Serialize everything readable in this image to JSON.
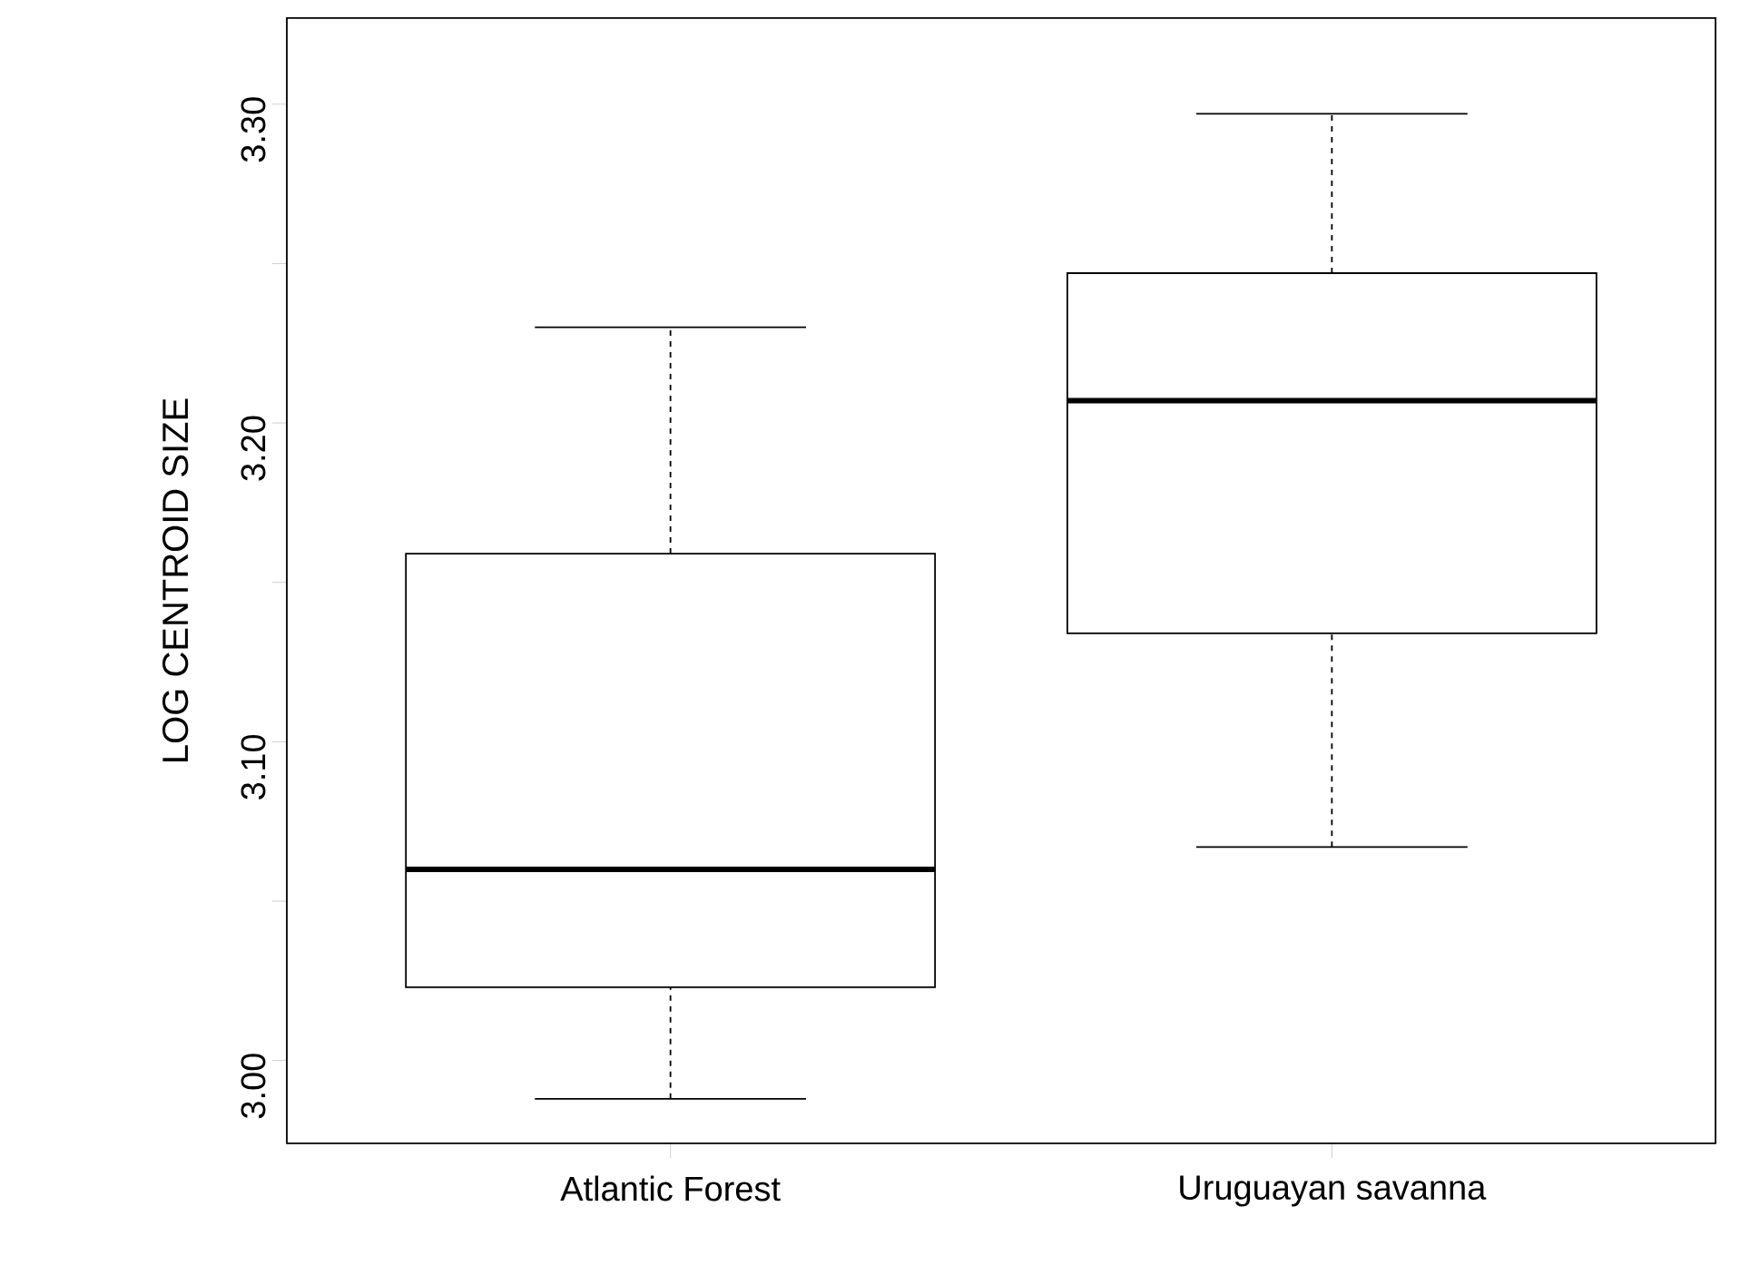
{
  "chart_data": {
    "type": "box",
    "ylabel": "LOG CENTROID SIZE",
    "categories": [
      "Atlantic Forest",
      "Uruguayan savanna"
    ],
    "boxes": [
      {
        "low": 2.988,
        "q1": 3.023,
        "median": 3.06,
        "q3": 3.159,
        "high": 3.23
      },
      {
        "low": 3.067,
        "q1": 3.134,
        "median": 3.207,
        "q3": 3.247,
        "high": 3.297
      }
    ],
    "ylim": [
      2.974,
      3.327
    ],
    "yticks": [
      {
        "value": 3.0,
        "label": "3.00"
      },
      {
        "value": 3.05,
        "label": null
      },
      {
        "value": 3.1,
        "label": "3.10"
      },
      {
        "value": 3.15,
        "label": null
      },
      {
        "value": 3.2,
        "label": "3.20"
      },
      {
        "value": 3.25,
        "label": null
      },
      {
        "value": 3.3,
        "label": "3.30"
      }
    ],
    "grid": false
  }
}
